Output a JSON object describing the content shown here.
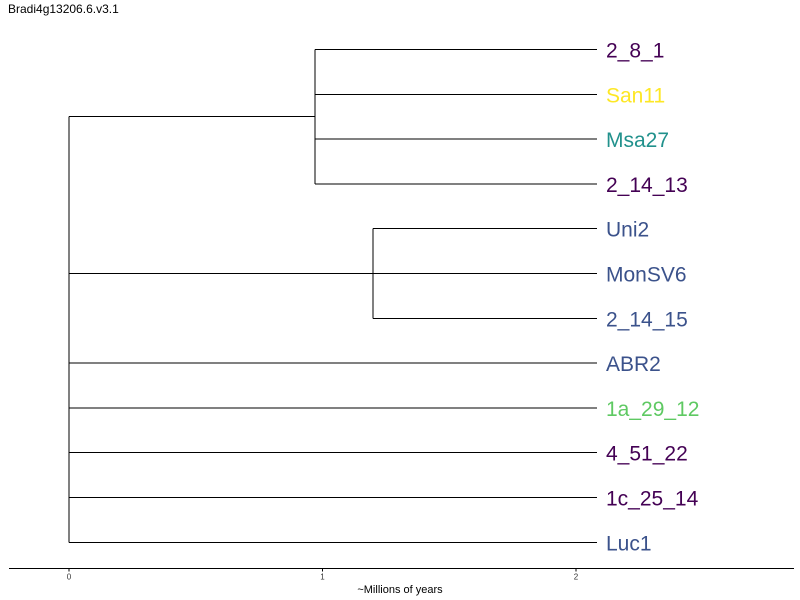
{
  "title": "Bradi4g13206.6.v3.1",
  "axis": {
    "label": "~Millions of years",
    "ticks": [
      "0",
      "1",
      "2"
    ],
    "tick_values": [
      0,
      1,
      2
    ],
    "range": [
      -0.24,
      2.87
    ]
  },
  "tree": {
    "id": "root",
    "t": 0,
    "children": [
      {
        "id": "clade-a",
        "t": 0.97,
        "children": [
          {
            "leaf": "2_8_1",
            "color": "#440154"
          },
          {
            "leaf": "San11",
            "color": "#fde725"
          },
          {
            "leaf": "Msa27",
            "color": "#21918c"
          },
          {
            "leaf": "2_14_13",
            "color": "#440154"
          }
        ]
      },
      {
        "id": "clade-b",
        "t": 1.2,
        "children": [
          {
            "leaf": "Uni2",
            "color": "#3b528b"
          },
          {
            "leaf": "MonSV6",
            "color": "#3b528b"
          },
          {
            "leaf": "2_14_15",
            "color": "#3b528b"
          }
        ]
      },
      {
        "leaf": "ABR2",
        "color": "#3b528b"
      },
      {
        "leaf": "1a_29_12",
        "color": "#5ec962"
      },
      {
        "leaf": "4_51_22",
        "color": "#440154"
      },
      {
        "leaf": "1c_25_14",
        "color": "#440154"
      },
      {
        "leaf": "Luc1",
        "color": "#3b528b"
      }
    ]
  }
}
